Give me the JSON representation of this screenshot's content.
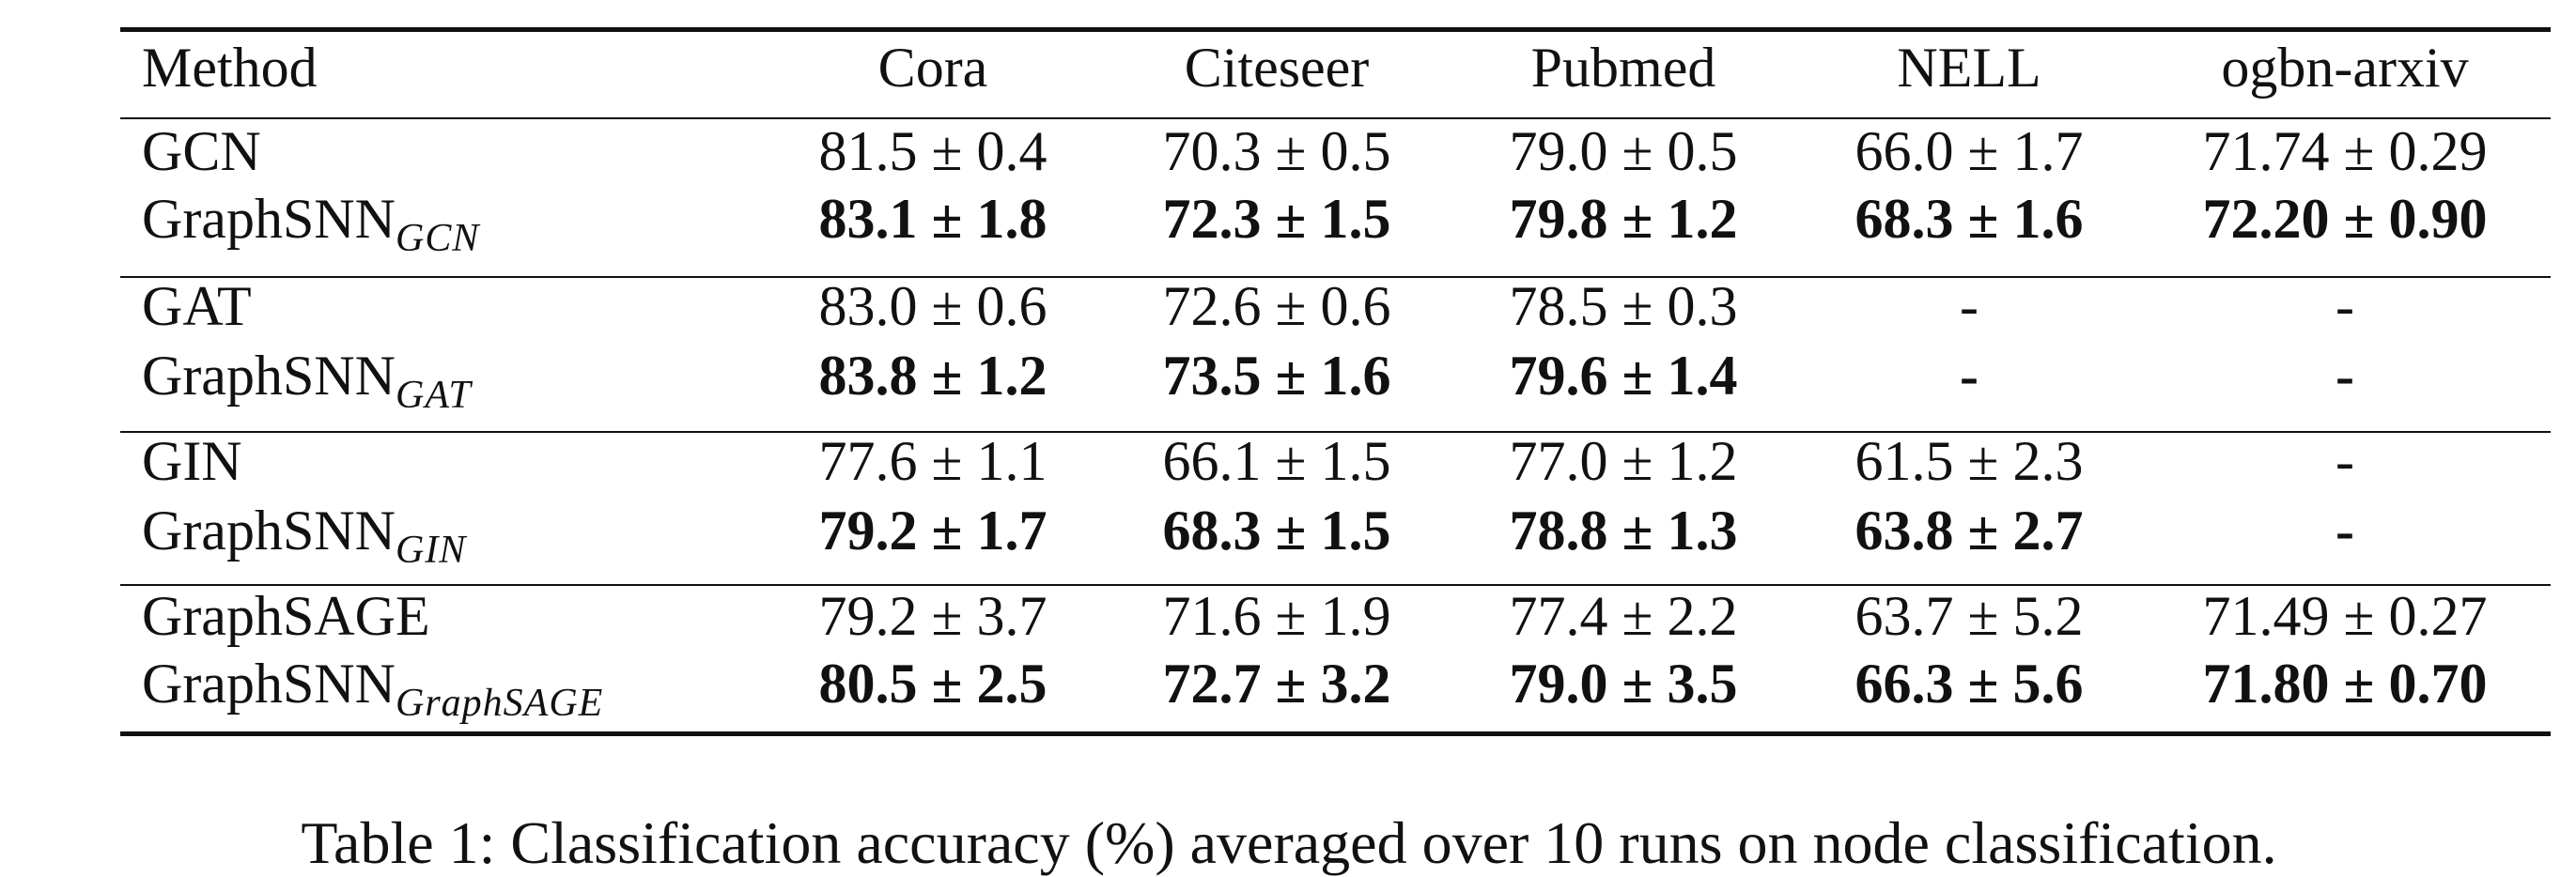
{
  "table": {
    "header": [
      "Method",
      "Cora",
      "Citeseer",
      "Pubmed",
      "NELL",
      "ogbn-arxiv"
    ],
    "groups": [
      {
        "rows": [
          {
            "method": "GCN",
            "cells": [
              "81.5 ± 0.4",
              "70.3 ± 0.5",
              "79.0 ± 0.5",
              "66.0 ± 1.7",
              "71.74 ± 0.29"
            ]
          },
          {
            "method": "GraphSNN",
            "method_sub": "GCN",
            "bold": true,
            "cells": [
              "83.1 ± 1.8",
              "72.3 ± 1.5",
              "79.8 ± 1.2",
              "68.3 ± 1.6",
              "72.20 ± 0.90"
            ]
          }
        ]
      },
      {
        "rows": [
          {
            "method": "GAT",
            "cells": [
              "83.0 ± 0.6",
              "72.6 ± 0.6",
              "78.5 ± 0.3",
              "-",
              "-"
            ]
          },
          {
            "method": "GraphSNN",
            "method_sub": "GAT",
            "bold": true,
            "cells": [
              "83.8 ± 1.2",
              "73.5 ± 1.6",
              "79.6 ± 1.4",
              "-",
              "-"
            ]
          }
        ]
      },
      {
        "rows": [
          {
            "method": "GIN",
            "cells": [
              "77.6 ± 1.1",
              "66.1 ± 1.5",
              "77.0 ± 1.2",
              "61.5 ± 2.3",
              "-"
            ]
          },
          {
            "method": "GraphSNN",
            "method_sub": "GIN",
            "bold": true,
            "cells": [
              "79.2 ± 1.7",
              "68.3 ± 1.5",
              "78.8 ± 1.3",
              "63.8 ± 2.7",
              "-"
            ]
          }
        ]
      },
      {
        "rows": [
          {
            "method": "GraphSAGE",
            "cells": [
              "79.2 ± 3.7",
              "71.6 ± 1.9",
              "77.4 ± 2.2",
              "63.7 ± 5.2",
              "71.49 ± 0.27"
            ]
          },
          {
            "method": "GraphSNN",
            "method_sub": "GraphSAGE",
            "bold": true,
            "cells": [
              "80.5 ± 2.5",
              "72.7 ± 3.2",
              "79.0 ± 3.5",
              "66.3 ± 5.6",
              "71.80 ± 0.70"
            ]
          }
        ]
      }
    ]
  },
  "caption": "Table 1: Classification accuracy (%) averaged over 10 runs on node classification."
}
